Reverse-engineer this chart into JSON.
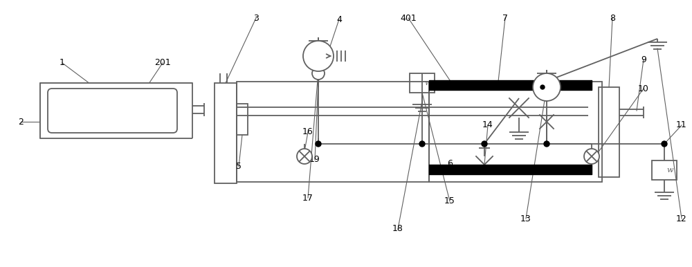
{
  "bg_color": "#ffffff",
  "line_color": "#606060",
  "black": "#000000",
  "figsize": [
    10.0,
    3.86
  ],
  "dpi": 100
}
